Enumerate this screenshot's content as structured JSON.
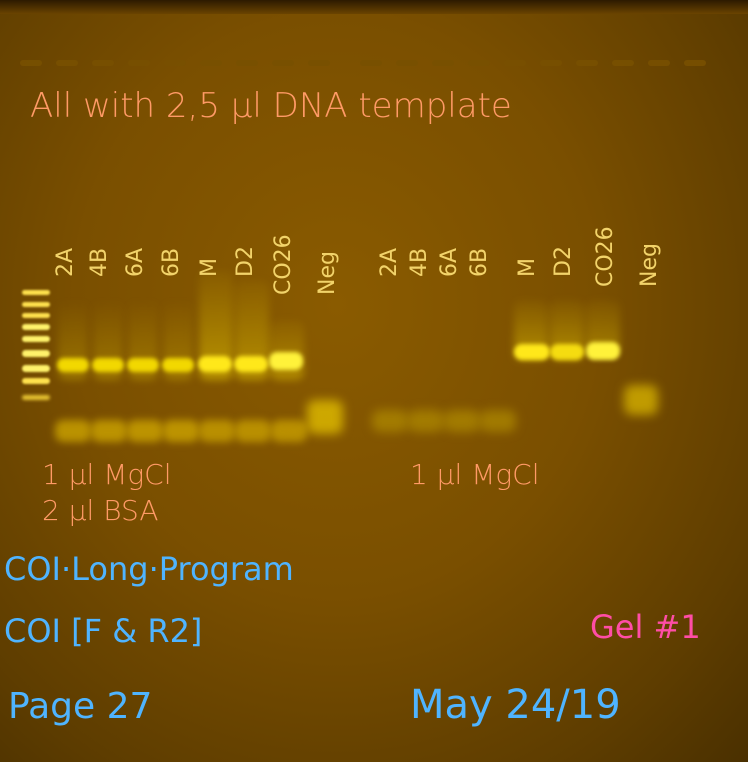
{
  "gel": {
    "title_note": "All with 2,5 µl DNA template",
    "lanes_left": [
      "2A",
      "4B",
      "6A",
      "6B",
      "M",
      "D2",
      "CO26",
      "Neg"
    ],
    "lanes_right": [
      "2A",
      "4B",
      "6A",
      "6B",
      "M",
      "D2",
      "CO26",
      "Neg"
    ],
    "cond_left_1": "1 µl  MgCl",
    "cond_left_2": "2 µl  BSA",
    "cond_right": "1 µl  MgCl",
    "program": "COI·Long·Program",
    "primers": "COI [F & R2]",
    "page": "Page 27",
    "gel_no": "Gel #1",
    "date": "May 24/19"
  },
  "colors": {
    "band_bright": "#ffee55",
    "band_mid": "#e8c200",
    "primer_dimer": "#c9a300"
  }
}
